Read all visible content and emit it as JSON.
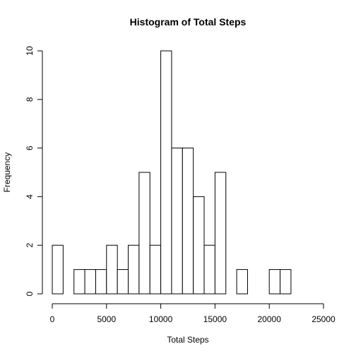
{
  "chart_data": {
    "type": "bar",
    "title": "Histogram of Total Steps",
    "xlabel": "Total Steps",
    "ylabel": "Frequency",
    "bin_width": 1000,
    "bins": [
      {
        "start": 0,
        "end": 1000,
        "count": 2
      },
      {
        "start": 1000,
        "end": 2000,
        "count": 0
      },
      {
        "start": 2000,
        "end": 3000,
        "count": 1
      },
      {
        "start": 3000,
        "end": 4000,
        "count": 1
      },
      {
        "start": 4000,
        "end": 5000,
        "count": 1
      },
      {
        "start": 5000,
        "end": 6000,
        "count": 2
      },
      {
        "start": 6000,
        "end": 7000,
        "count": 1
      },
      {
        "start": 7000,
        "end": 8000,
        "count": 2
      },
      {
        "start": 8000,
        "end": 9000,
        "count": 5
      },
      {
        "start": 9000,
        "end": 10000,
        "count": 2
      },
      {
        "start": 10000,
        "end": 11000,
        "count": 10
      },
      {
        "start": 11000,
        "end": 12000,
        "count": 6
      },
      {
        "start": 12000,
        "end": 13000,
        "count": 6
      },
      {
        "start": 13000,
        "end": 14000,
        "count": 4
      },
      {
        "start": 14000,
        "end": 15000,
        "count": 2
      },
      {
        "start": 15000,
        "end": 16000,
        "count": 5
      },
      {
        "start": 16000,
        "end": 17000,
        "count": 0
      },
      {
        "start": 17000,
        "end": 18000,
        "count": 1
      },
      {
        "start": 18000,
        "end": 19000,
        "count": 0
      },
      {
        "start": 19000,
        "end": 20000,
        "count": 0
      },
      {
        "start": 20000,
        "end": 21000,
        "count": 1
      },
      {
        "start": 21000,
        "end": 22000,
        "count": 1
      }
    ],
    "xlim": [
      0,
      25000
    ],
    "ylim": [
      0,
      10
    ],
    "x_ticks": [
      0,
      5000,
      10000,
      15000,
      20000,
      25000
    ],
    "x_tick_labels": [
      "0",
      "5000",
      "10000",
      "15000",
      "20000",
      "25000"
    ],
    "y_ticks": [
      0,
      2,
      4,
      6,
      8,
      10
    ],
    "y_tick_labels": [
      "0",
      "2",
      "4",
      "6",
      "8",
      "10"
    ],
    "grid": false,
    "legend": "none"
  }
}
